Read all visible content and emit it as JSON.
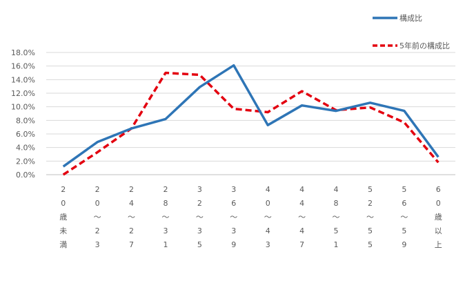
{
  "chart_data": {
    "type": "line",
    "categories": [
      "20歳未満",
      "20～23",
      "24～27",
      "28～31",
      "32～35",
      "36～39",
      "40～43",
      "44～47",
      "48～51",
      "52～55",
      "56～59",
      "60歳以上"
    ],
    "category_labels": [
      [
        "2",
        "0",
        "歳",
        "未",
        "満"
      ],
      [
        "2",
        "0",
        "～",
        "2",
        "3"
      ],
      [
        "2",
        "4",
        "～",
        "2",
        "7"
      ],
      [
        "2",
        "8",
        "～",
        "3",
        "1"
      ],
      [
        "3",
        "2",
        "～",
        "3",
        "5"
      ],
      [
        "3",
        "6",
        "～",
        "3",
        "9"
      ],
      [
        "4",
        "0",
        "～",
        "4",
        "3"
      ],
      [
        "4",
        "4",
        "～",
        "4",
        "7"
      ],
      [
        "4",
        "8",
        "～",
        "5",
        "1"
      ],
      [
        "5",
        "2",
        "～",
        "5",
        "5"
      ],
      [
        "5",
        "6",
        "～",
        "5",
        "9"
      ],
      [
        "6",
        "0",
        "歳",
        "以",
        "上"
      ]
    ],
    "series": [
      {
        "name": "構成比",
        "values": [
          1.2,
          4.8,
          6.8,
          8.2,
          12.9,
          16.1,
          7.3,
          10.2,
          9.4,
          10.6,
          9.4,
          2.6
        ],
        "color": "#2E75B6",
        "style": "solid"
      },
      {
        "name": "5年前の構成比",
        "values": [
          0.0,
          3.3,
          6.8,
          15.0,
          14.7,
          9.7,
          9.2,
          12.3,
          9.5,
          9.9,
          7.7,
          1.8
        ],
        "color": "#E3000F",
        "style": "dashed"
      }
    ],
    "y_ticks": [
      "0.0%",
      "2.0%",
      "4.0%",
      "6.0%",
      "8.0%",
      "10.0%",
      "12.0%",
      "14.0%",
      "16.0%",
      "18.0%"
    ],
    "ylim": [
      0,
      18
    ],
    "grid": true,
    "legend_position": "top-right",
    "title": "",
    "xlabel": "",
    "ylabel": ""
  }
}
